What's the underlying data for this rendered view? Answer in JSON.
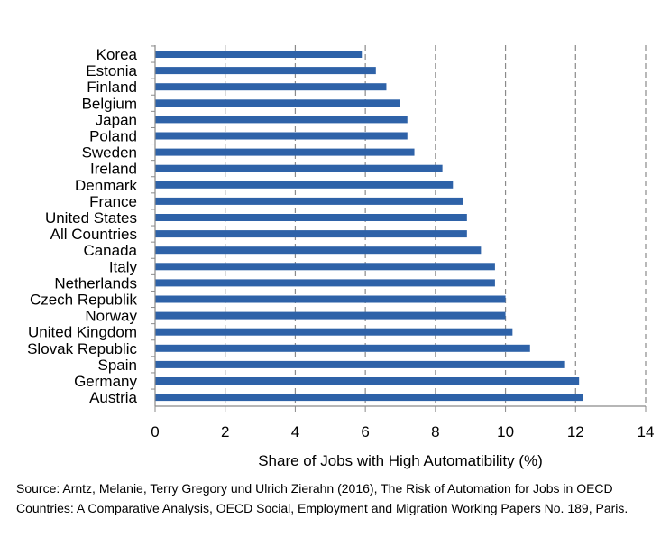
{
  "chart_data": {
    "type": "bar",
    "orientation": "horizontal",
    "categories": [
      "Korea",
      "Estonia",
      "Finland",
      "Belgium",
      "Japan",
      "Poland",
      "Sweden",
      "Ireland",
      "Denmark",
      "France",
      "United States",
      "All Countries",
      "Canada",
      "Italy",
      "Netherlands",
      "Czech Republik",
      "Norway",
      "United Kingdom",
      "Slovak Republic",
      "Spain",
      "Germany",
      "Austria"
    ],
    "values": [
      5.9,
      6.3,
      6.6,
      7.0,
      7.2,
      7.2,
      7.4,
      8.2,
      8.5,
      8.8,
      8.9,
      8.9,
      9.3,
      9.7,
      9.7,
      10.0,
      10.0,
      10.2,
      10.7,
      11.7,
      12.1,
      12.2
    ],
    "xlim": [
      0,
      14
    ],
    "xticks": [
      "0",
      "2",
      "4",
      "6",
      "8",
      "10",
      "12",
      "14"
    ],
    "xlabel": "Share of Jobs with High Automatibility (%)",
    "ylabel": "",
    "title": "",
    "grid": "vertical dashed",
    "bar_color": "#2e62a8",
    "gridline_color": "#8a8a8a"
  },
  "source_note": "Source: Arntz, Melanie, Terry Gregory und Ulrich Zierahn (2016), The Risk of Automation for Jobs in OECD Countries: A Comparative Analysis, OECD Social, Employment and Migration Working Papers No. 189, Paris."
}
